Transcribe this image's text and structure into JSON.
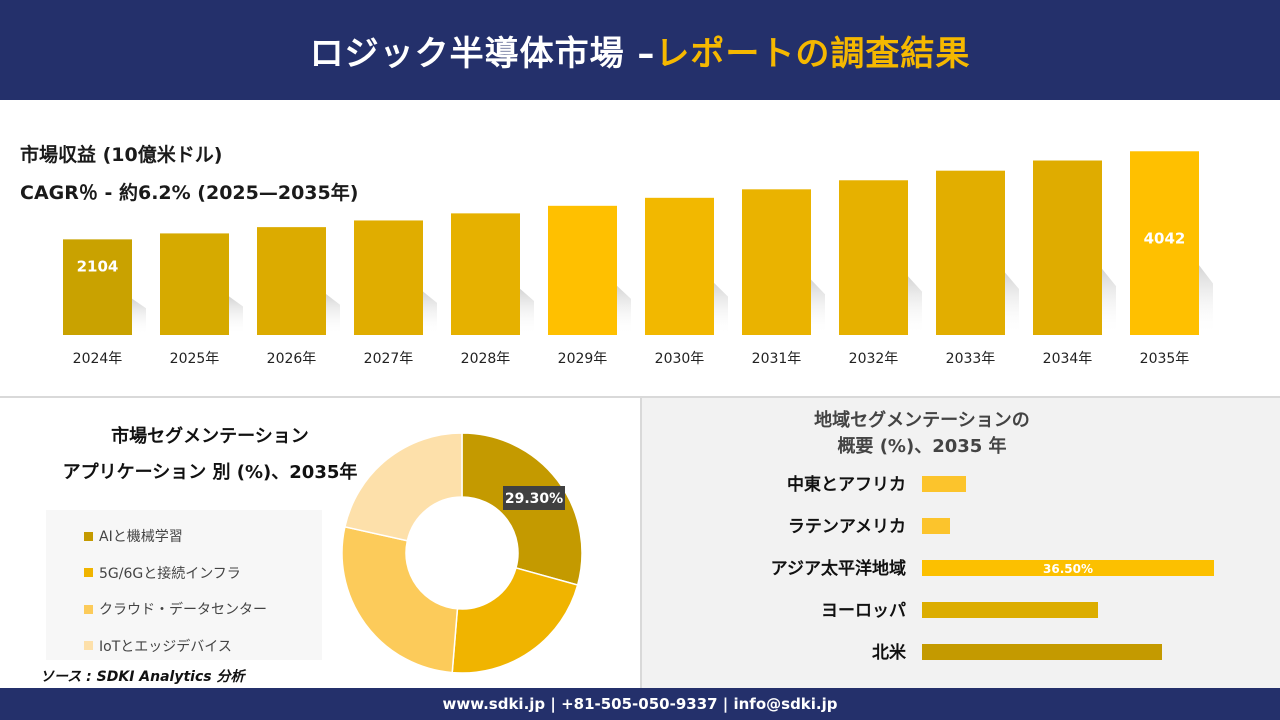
{
  "header": {
    "title_main": "ロジック半導体市場",
    "title_sep": " –",
    "title_accent": "レポートの調査結果"
  },
  "revenue": {
    "label": "市場収益 (10億米ドル)",
    "cagr": "CAGR％ - 約6.2% (2025—2035年)"
  },
  "segmentation": {
    "title_line1": "市場セグメンテーション",
    "title_line2": "アプリケーション 別 (%)、2035年"
  },
  "regional": {
    "title_line1": "地域セグメンテーションの",
    "title_line2": "概要 (%)、2035 年"
  },
  "source": "ソース : SDKI Analytics 分析",
  "footer": {
    "contact": "www.sdki.jp | +81-505-050-9337 | info@sdki.jp"
  },
  "colors": {
    "header_bg": "#24306b",
    "accent": "#f5b800"
  },
  "chart_data": [
    {
      "type": "bar",
      "categories": [
        "2024年",
        "2025年",
        "2026年",
        "2027年",
        "2028年",
        "2029年",
        "2030年",
        "2031年",
        "2032年",
        "2033年",
        "2034年",
        "2035年"
      ],
      "values": [
        2104,
        2235,
        2373,
        2520,
        2676,
        2842,
        3018,
        3205,
        3404,
        3615,
        3839,
        4042
      ],
      "data_labels": [
        {
          "category": "2024年",
          "text": "2104"
        },
        {
          "category": "2035年",
          "text": "4042"
        }
      ],
      "colors": [
        "#c9a200",
        "#d6aa00",
        "#dcab00",
        "#e0ad00",
        "#e6b100",
        "#ffc000",
        "#f2b800",
        "#eab300",
        "#e6b100",
        "#e2ae00",
        "#dfac00",
        "#ffc000"
      ],
      "ylim": [
        0,
        4400
      ]
    },
    {
      "type": "pie",
      "donut": true,
      "labels": [
        "AIと機械学習",
        "5G/6Gと接続インフラ",
        "クラウド・データセンター",
        "IoTとエッジデバイス"
      ],
      "values": [
        29.3,
        22.0,
        27.2,
        21.5
      ],
      "colors": [
        "#c49a00",
        "#f0b400",
        "#fccb5a",
        "#fde0aa"
      ],
      "data_labels": [
        {
          "label": "AIと機械学習",
          "text": "29.30%"
        }
      ],
      "legend": "left"
    },
    {
      "type": "bar",
      "orientation": "horizontal",
      "categories": [
        "中東とアフリカ",
        "ラテンアメリカ",
        "アジア太平洋地域",
        "ヨーロッパ",
        "北米"
      ],
      "values": [
        5.5,
        3.5,
        36.5,
        22.0,
        30.0
      ],
      "data_labels": [
        {
          "category": "アジア太平洋地域",
          "text": "36.50%"
        }
      ],
      "colors": [
        "#fcc42c",
        "#fcc42c",
        "#fcc000",
        "#dcad00",
        "#c49a00"
      ],
      "xlim": [
        0,
        40
      ]
    }
  ]
}
